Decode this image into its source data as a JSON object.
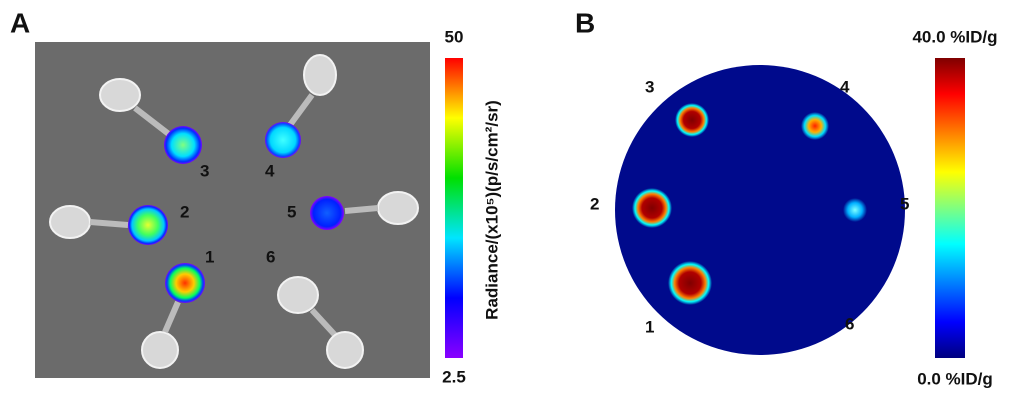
{
  "panels": [
    {
      "label": "A",
      "colorbar": {
        "max": "50",
        "min": "2.5",
        "title": "Radiance/(x10⁵)(p/s/cm²/sr)"
      },
      "spot_labels": [
        "1",
        "2",
        "3",
        "4",
        "5",
        "6"
      ]
    },
    {
      "label": "B",
      "colorbar": {
        "max": "40.0 %ID/g",
        "min": "0.0 %ID/g"
      },
      "spot_labels": [
        "1",
        "2",
        "3",
        "4",
        "5",
        "6"
      ]
    }
  ]
}
